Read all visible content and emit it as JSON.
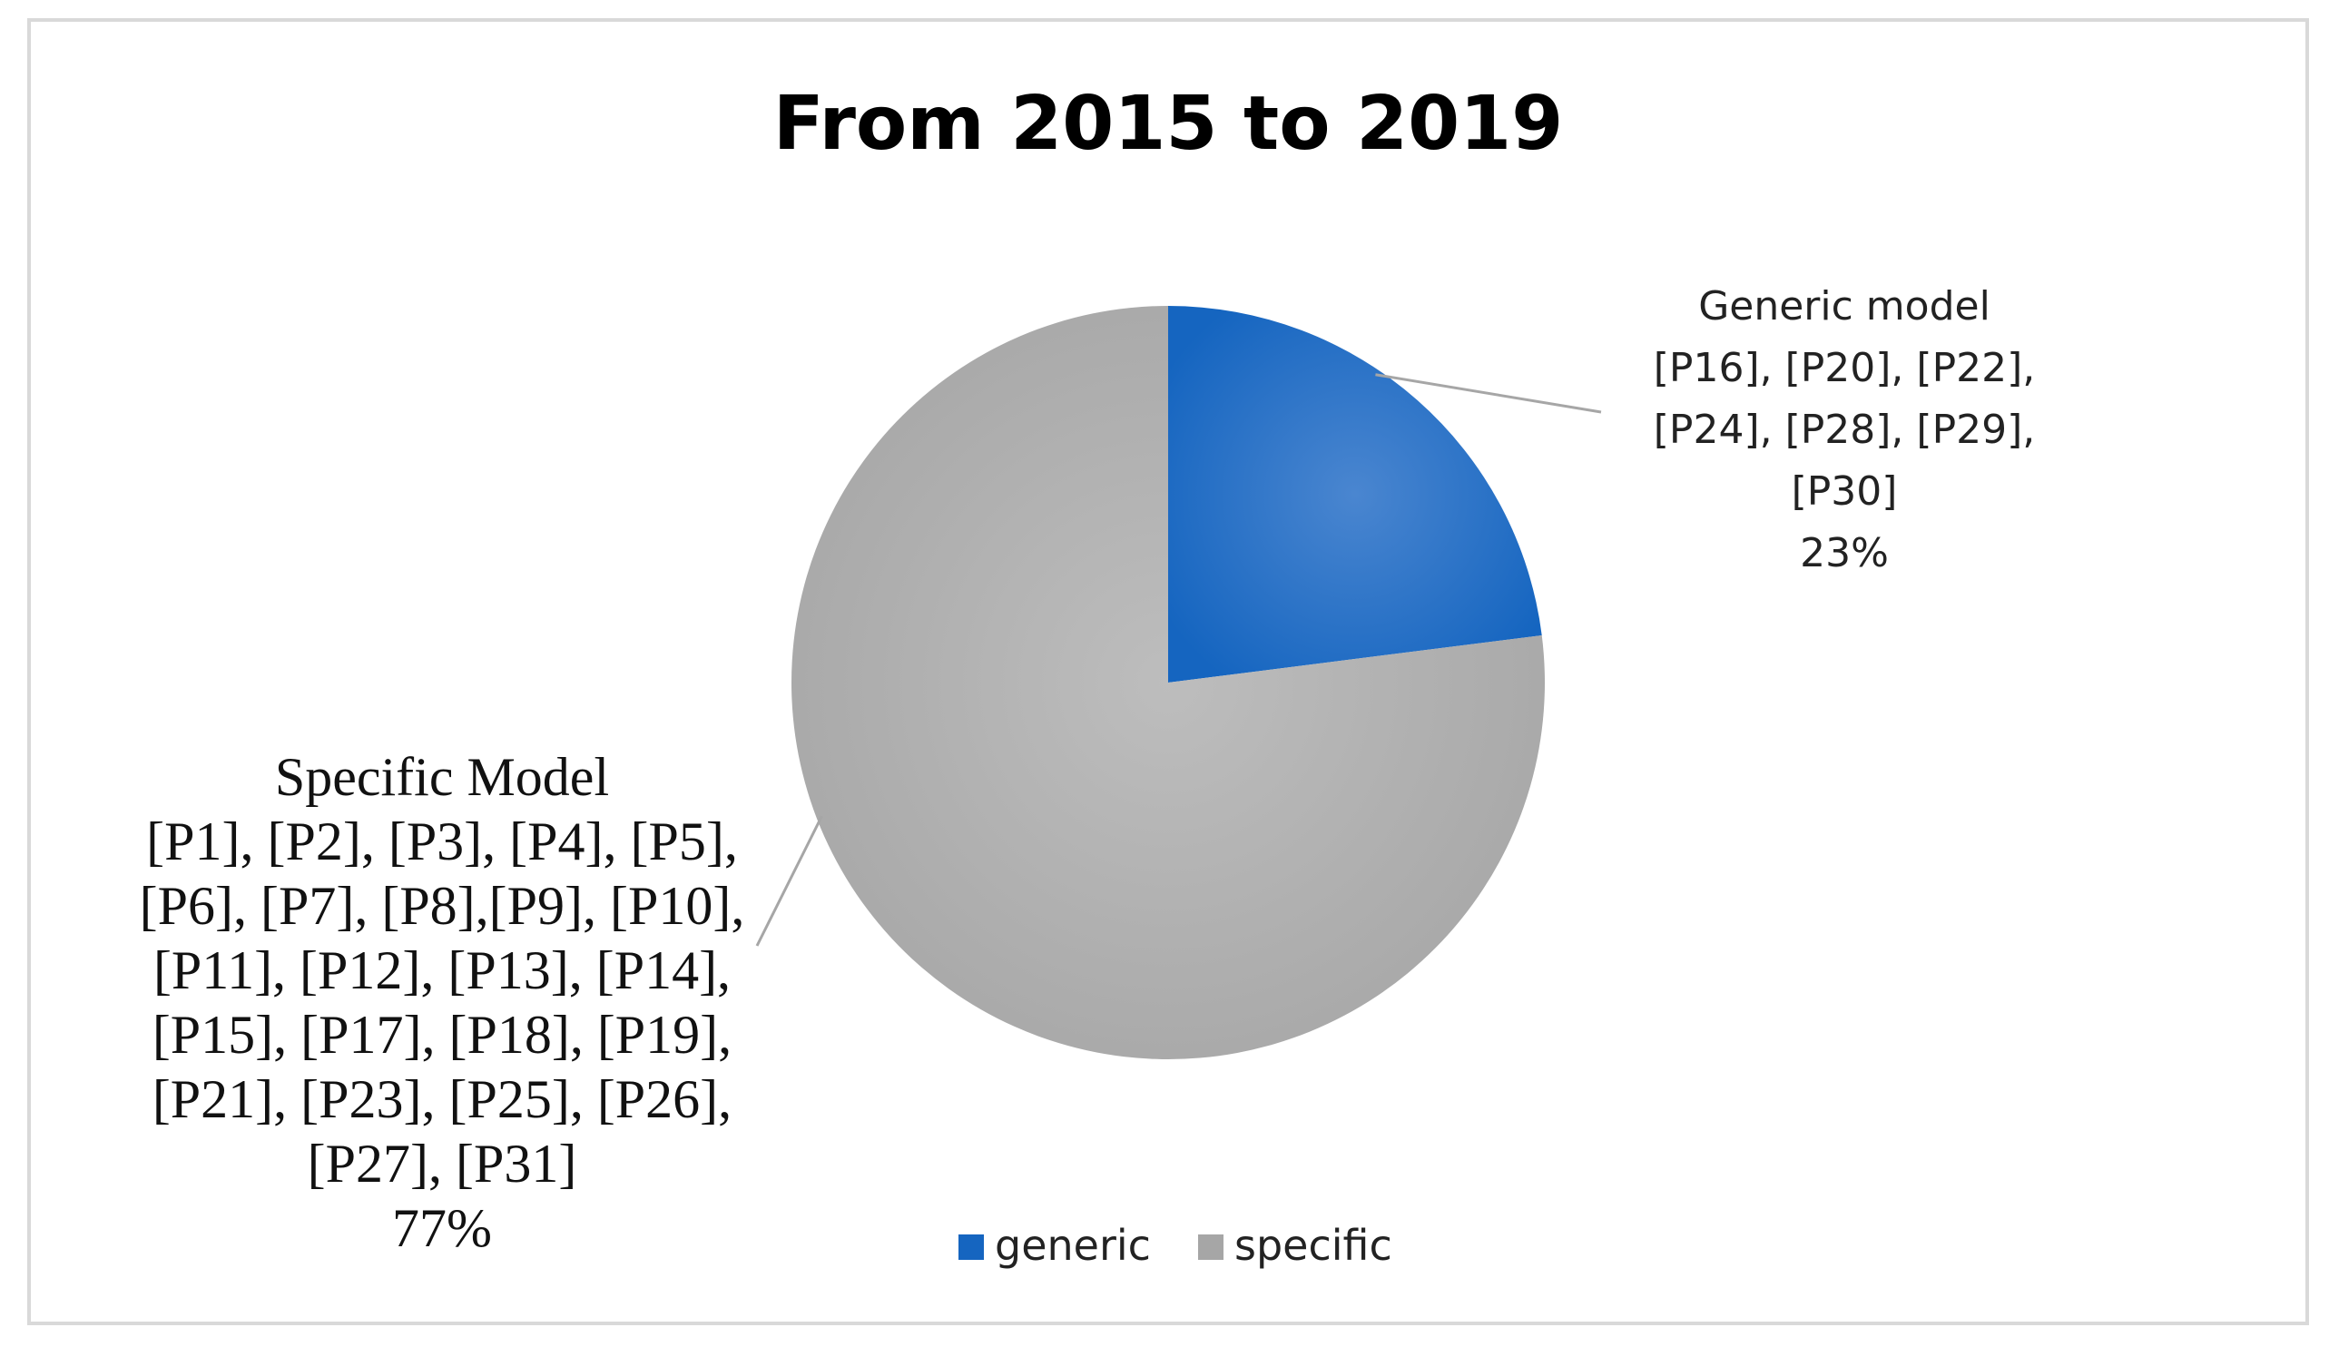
{
  "chart_data": {
    "type": "pie",
    "title": "From 2015 to 2019",
    "slices": [
      {
        "name": "generic",
        "value": 23,
        "color": "#1565C0",
        "color_light": "#4A86D0",
        "label_lines": [
          "Generic model",
          "[P16], [P20], [P22],",
          "[P24], [P28], [P29],",
          "[P30]",
          "23%"
        ]
      },
      {
        "name": "specific",
        "value": 77,
        "color": "#A6A6A6",
        "color_light": "#BDBDBD",
        "label_lines": [
          "Specific Model",
          "[P1], [P2], [P3], [P4], [P5],",
          "[P6], [P7], [P8],[P9], [P10],",
          "[P11], [P12], [P13], [P14],",
          "[P15], [P17], [P18], [P19],",
          "[P21], [P23], [P25], [P26],",
          "[P27], [P31]",
          "77%"
        ]
      }
    ],
    "legend": {
      "position": "bottom",
      "entries": [
        "generic",
        "specific"
      ]
    }
  }
}
